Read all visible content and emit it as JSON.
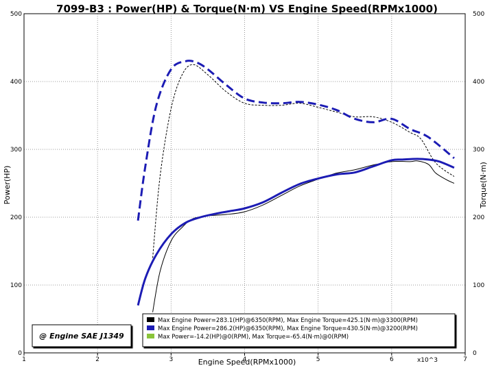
{
  "chart_data": {
    "type": "line",
    "title": "7099-B3 : Power(HP) & Torque(N·m) VS Engine Speed(RPMx1000)",
    "xlabel": "Engine Speed(RPMx1000)",
    "ylabel_left": "Power(HP)",
    "ylabel_right": "Torque(N·m)",
    "x_multiplier_label": "x10^3",
    "xlim": [
      1,
      7
    ],
    "ylim": [
      0,
      500
    ],
    "x_ticks": [
      "1",
      "2",
      "3",
      "4",
      "5",
      "6",
      "7"
    ],
    "y_ticks_left": [
      "0",
      "100",
      "200",
      "300",
      "400",
      "500"
    ],
    "y_ticks_right": [
      "0",
      "100",
      "200",
      "300",
      "400",
      "500"
    ],
    "grid": true,
    "legend_position": "bottom-right",
    "badge": "@ Engine SAE J1349",
    "colors": {
      "background": "#ffffff",
      "grid": "#7a7a7a",
      "series_black": "#000000",
      "series_blue": "#1c1cb4",
      "series_green": "#8ac43a"
    },
    "legend": [
      {
        "color": "#000000",
        "text": "Max Engine Power=283.1(HP)@6350(RPM), Max Engine Torque=425.1(N·m)@3300(RPM)"
      },
      {
        "color": "#1c1cb4",
        "text": "Max Engine Power=286.2(HP)@6350(RPM), Max Engine Torque=430.5(N·m)@3200(RPM)"
      },
      {
        "color": "#8ac43a",
        "text": "Max Power=-14.2(HP)@0(RPM), Max Torque=-65.4(N·m)@0(RPM)"
      }
    ],
    "series": [
      {
        "color": "#000000",
        "kind": "power",
        "dashed": false,
        "width": 1,
        "x": [
          2.75,
          2.85,
          3.0,
          3.15,
          3.3,
          3.5,
          3.75,
          4.0,
          4.25,
          4.5,
          4.75,
          5.0,
          5.25,
          5.5,
          5.75,
          6.0,
          6.25,
          6.35,
          6.5,
          6.6,
          6.75,
          6.85
        ],
        "y": [
          60,
          120,
          165,
          185,
          198,
          202,
          204,
          208,
          218,
          232,
          246,
          256,
          265,
          270,
          277,
          282,
          282,
          283,
          278,
          265,
          255,
          250
        ]
      },
      {
        "color": "#000000",
        "kind": "torque",
        "dashed": true,
        "width": 1,
        "x": [
          2.75,
          2.85,
          3.0,
          3.15,
          3.3,
          3.5,
          3.75,
          4.0,
          4.25,
          4.5,
          4.75,
          5.0,
          5.25,
          5.5,
          5.75,
          6.0,
          6.25,
          6.4,
          6.6,
          6.85
        ],
        "y": [
          140,
          260,
          360,
          410,
          425,
          410,
          385,
          368,
          365,
          365,
          368,
          362,
          355,
          348,
          348,
          340,
          325,
          315,
          280,
          260
        ]
      },
      {
        "color": "#1c1cb4",
        "kind": "power",
        "dashed": false,
        "width": 3,
        "x": [
          2.55,
          2.65,
          2.8,
          3.0,
          3.2,
          3.4,
          3.6,
          3.8,
          4.0,
          4.25,
          4.5,
          4.75,
          5.0,
          5.25,
          5.5,
          5.75,
          6.0,
          6.15,
          6.35,
          6.5,
          6.65,
          6.85
        ],
        "y": [
          70,
          110,
          145,
          175,
          192,
          200,
          205,
          209,
          213,
          222,
          236,
          249,
          257,
          263,
          266,
          275,
          284,
          285,
          286,
          285,
          282,
          273
        ]
      },
      {
        "color": "#1c1cb4",
        "kind": "torque",
        "dashed": true,
        "width": 3,
        "x": [
          2.55,
          2.65,
          2.8,
          3.0,
          3.2,
          3.35,
          3.5,
          3.75,
          4.0,
          4.25,
          4.5,
          4.75,
          5.0,
          5.25,
          5.5,
          5.75,
          6.0,
          6.25,
          6.5,
          6.85
        ],
        "y": [
          195,
          275,
          365,
          418,
          430,
          428,
          418,
          395,
          375,
          369,
          368,
          370,
          366,
          358,
          345,
          340,
          345,
          330,
          318,
          287
        ]
      }
    ]
  }
}
